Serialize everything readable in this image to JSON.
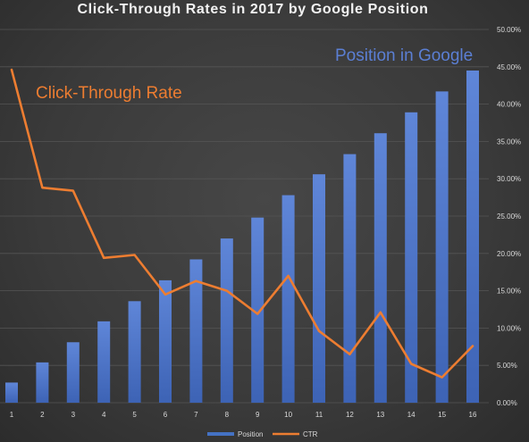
{
  "chart_data": {
    "type": "bar",
    "title": "Click-Through Rates in 2017 by Google Position",
    "categories": [
      "1",
      "2",
      "3",
      "4",
      "5",
      "6",
      "7",
      "8",
      "9",
      "10",
      "11",
      "12",
      "13",
      "14",
      "15",
      "16"
    ],
    "series": [
      {
        "name": "Position",
        "type": "bar",
        "color": "#4472c4",
        "values": [
          2.7,
          5.4,
          8.1,
          10.9,
          13.6,
          16.4,
          19.2,
          22.0,
          24.8,
          27.8,
          30.6,
          33.3,
          36.1,
          38.9,
          41.7,
          44.5
        ]
      },
      {
        "name": "CTR",
        "type": "line",
        "color": "#ed7d31",
        "values": [
          44.6,
          28.8,
          28.4,
          19.4,
          19.8,
          14.5,
          16.3,
          15.0,
          11.9,
          17.0,
          9.6,
          6.5,
          12.1,
          5.2,
          3.4,
          7.6
        ]
      }
    ],
    "y_ticks": [
      "0.00%",
      "5.00%",
      "10.00%",
      "15.00%",
      "20.00%",
      "25.00%",
      "30.00%",
      "35.00%",
      "40.00%",
      "45.00%",
      "50.00%"
    ],
    "ylim": [
      0,
      50
    ],
    "y_axis_side": "right",
    "grid": true,
    "legend_position": "bottom",
    "annotations": {
      "ctr": "Click-Through Rate",
      "position": "Position in Google"
    }
  }
}
